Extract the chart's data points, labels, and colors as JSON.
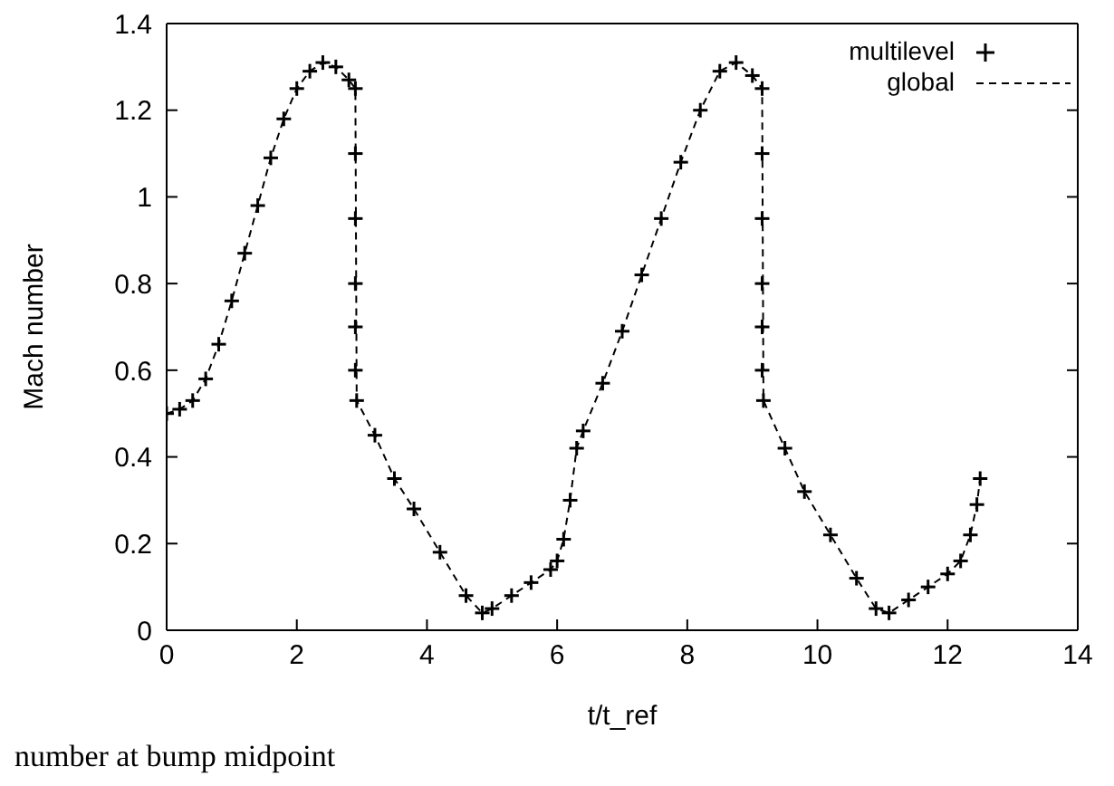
{
  "chart_data": {
    "type": "scatter",
    "xlabel": "t/t_ref",
    "ylabel": "Mach number",
    "xlim": [
      0,
      14
    ],
    "xticks": [
      0,
      2,
      4,
      6,
      8,
      10,
      12,
      14
    ],
    "ylim": [
      0,
      1.4
    ],
    "yticks": [
      0,
      0.2,
      0.4,
      0.6,
      0.8,
      1,
      1.2,
      1.4
    ],
    "legend": "top right",
    "annotations": [
      "number at bump midpoint"
    ],
    "series": [
      {
        "name": "multilevel",
        "marker": "cross",
        "color": "#000000",
        "x": [
          0,
          0.2,
          0.4,
          0.6,
          0.8,
          1.0,
          1.2,
          1.4,
          1.6,
          1.8,
          2.0,
          2.2,
          2.4,
          2.6,
          2.8,
          2.9,
          2.9,
          2.9,
          2.9,
          2.9,
          2.9,
          2.92,
          3.2,
          3.5,
          3.8,
          4.2,
          4.6,
          4.85,
          5.0,
          5.3,
          5.6,
          5.9,
          6.0,
          6.1,
          6.2,
          6.3,
          6.4,
          6.7,
          7.0,
          7.3,
          7.6,
          7.9,
          8.2,
          8.5,
          8.75,
          9.0,
          9.15,
          9.15,
          9.15,
          9.15,
          9.15,
          9.15,
          9.17,
          9.5,
          9.8,
          10.2,
          10.6,
          10.9,
          11.1,
          11.4,
          11.7,
          12.0,
          12.2,
          12.35,
          12.45,
          12.5
        ],
        "values": [
          0.5,
          0.51,
          0.53,
          0.58,
          0.66,
          0.76,
          0.87,
          0.98,
          1.09,
          1.18,
          1.25,
          1.29,
          1.31,
          1.3,
          1.27,
          1.25,
          1.1,
          0.95,
          0.8,
          0.7,
          0.6,
          0.53,
          0.45,
          0.35,
          0.28,
          0.18,
          0.08,
          0.04,
          0.05,
          0.08,
          0.11,
          0.14,
          0.16,
          0.21,
          0.3,
          0.42,
          0.46,
          0.57,
          0.69,
          0.82,
          0.95,
          1.08,
          1.2,
          1.29,
          1.31,
          1.28,
          1.25,
          1.1,
          0.95,
          0.8,
          0.7,
          0.6,
          0.53,
          0.42,
          0.32,
          0.22,
          0.12,
          0.05,
          0.04,
          0.07,
          0.1,
          0.13,
          0.16,
          0.22,
          0.29,
          0.35
        ]
      },
      {
        "name": "global",
        "type": "line",
        "line_style": "dashed",
        "color": "#000000",
        "x": [
          0,
          0.2,
          0.4,
          0.6,
          0.8,
          1.0,
          1.2,
          1.4,
          1.6,
          1.8,
          2.0,
          2.2,
          2.4,
          2.6,
          2.8,
          2.9,
          2.92,
          3.2,
          3.5,
          3.8,
          4.2,
          4.6,
          4.85,
          5.0,
          5.3,
          5.6,
          5.9,
          6.0,
          6.1,
          6.2,
          6.3,
          6.4,
          6.7,
          7.0,
          7.3,
          7.6,
          7.9,
          8.2,
          8.5,
          8.75,
          9.0,
          9.15,
          9.17,
          9.5,
          9.8,
          10.2,
          10.6,
          10.9,
          11.1,
          11.4,
          11.7,
          12.0,
          12.2,
          12.35,
          12.45,
          12.5
        ],
        "values": [
          0.5,
          0.51,
          0.53,
          0.58,
          0.66,
          0.76,
          0.87,
          0.98,
          1.09,
          1.18,
          1.25,
          1.29,
          1.31,
          1.3,
          1.27,
          1.25,
          0.53,
          0.45,
          0.35,
          0.28,
          0.18,
          0.08,
          0.04,
          0.05,
          0.08,
          0.11,
          0.14,
          0.16,
          0.21,
          0.3,
          0.42,
          0.46,
          0.57,
          0.69,
          0.82,
          0.95,
          1.08,
          1.2,
          1.29,
          1.31,
          1.28,
          1.25,
          0.53,
          0.42,
          0.32,
          0.22,
          0.12,
          0.05,
          0.04,
          0.07,
          0.1,
          0.13,
          0.16,
          0.22,
          0.29,
          0.35
        ]
      }
    ]
  }
}
